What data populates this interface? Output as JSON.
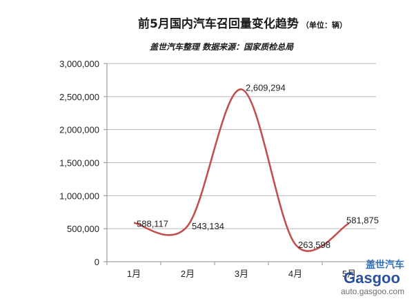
{
  "chart_data": {
    "type": "line",
    "title": "前5月国内汽车召回量变化趋势",
    "title_unit": "（单位：辆）",
    "subtitle": "盖世汽车整理 数据来源：国家质检总局",
    "categories": [
      "1月",
      "2月",
      "3月",
      "4月",
      "5月"
    ],
    "series": [
      {
        "values": [
          588117,
          543134,
          2609294,
          263598,
          581875
        ]
      }
    ],
    "data_labels": [
      "588,117",
      "543,134",
      "2,609,294",
      "263,598",
      "581,875"
    ],
    "y_ticks": [
      "0",
      "500,000",
      "1,000,000",
      "1,500,000",
      "2,000,000",
      "2,500,000",
      "3,000,000"
    ],
    "ylim": [
      0,
      3000000
    ],
    "grid": true,
    "smooth": true,
    "line_color": "#c0504d"
  },
  "watermark": {
    "brand": "盖世汽车",
    "logo": "Gasgoo",
    "url": "auto.gasgoo.com"
  }
}
